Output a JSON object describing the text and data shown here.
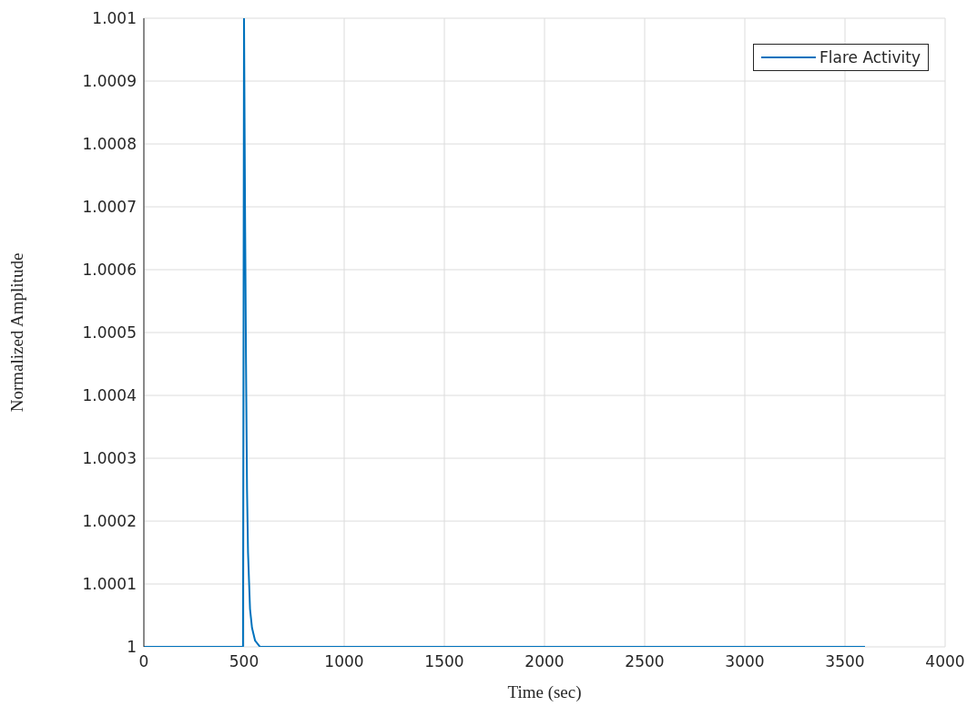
{
  "chart_data": {
    "type": "line",
    "xlabel": "Time (sec)",
    "ylabel": "Normalized Amplitude",
    "x": [
      0,
      495,
      500,
      505,
      510,
      515,
      520,
      530,
      540,
      555,
      580,
      3600
    ],
    "series": [
      {
        "name": "Flare Activity",
        "color": "#0072bd",
        "values": [
          1,
          1,
          1.001,
          1.0007,
          1.00045,
          1.00025,
          1.00015,
          1.00006,
          1.00003,
          1.00001,
          1,
          1
        ]
      }
    ],
    "xlim": [
      0,
      4000
    ],
    "xticks": [
      0,
      500,
      1000,
      1500,
      2000,
      2500,
      3000,
      3500,
      4000
    ],
    "ylim": [
      1,
      1.001
    ],
    "yticks": [
      1,
      1.0001,
      1.0002,
      1.0003,
      1.0004,
      1.0005,
      1.0006,
      1.0007,
      1.0008,
      1.0009,
      1.001
    ],
    "grid": true,
    "legend": "top right",
    "marker": "none",
    "line_style": "solid"
  }
}
